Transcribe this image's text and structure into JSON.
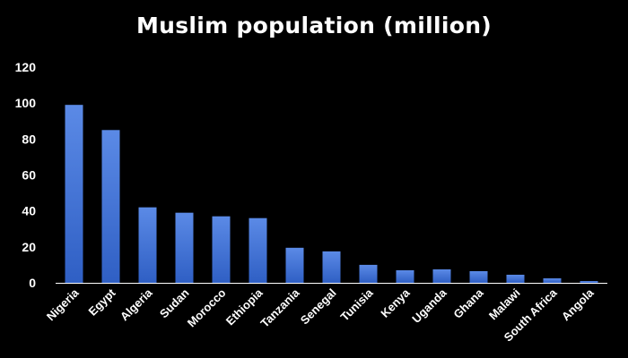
{
  "chart_data": {
    "type": "bar",
    "title": "Muslim population  (million)",
    "xlabel": "",
    "ylabel": "",
    "categories": [
      "Nigeria",
      "Egypt",
      "Algeria",
      "Sudan",
      "Morocco",
      "Ethiopia",
      "Tanzania",
      "Senegal",
      "Tunisia",
      "Kenya",
      "Uganda",
      "Ghana",
      "Malawi",
      "South Africa",
      "Angola"
    ],
    "values": [
      99,
      85,
      42,
      39,
      37,
      36,
      19.5,
      17.5,
      10,
      7,
      7.5,
      6.5,
      4.5,
      2.5,
      1
    ],
    "ylim": [
      0,
      120
    ],
    "yticks": [
      0,
      20,
      40,
      60,
      80,
      100,
      120
    ],
    "grid": false,
    "legend": "none",
    "colors": {
      "background": "#000000",
      "bar_top": "#5b8ae6",
      "bar_bottom": "#2f5fc4",
      "axis": "#ffffff",
      "text": "#ffffff"
    }
  }
}
